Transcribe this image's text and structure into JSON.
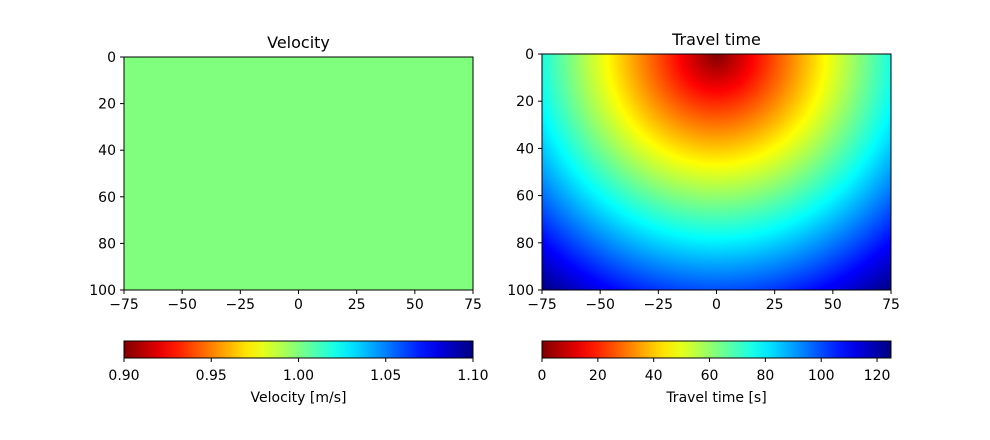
{
  "chart_data": [
    {
      "type": "heatmap",
      "title": "Velocity",
      "x_ticks": [
        -75,
        -50,
        -25,
        0,
        25,
        50,
        75
      ],
      "y_ticks": [
        0,
        20,
        40,
        60,
        80,
        100
      ],
      "xlim": [
        -75,
        75
      ],
      "ylim": [
        100,
        0
      ],
      "y_inverted": true,
      "field": "constant",
      "value": 1.0,
      "colormap": "jet",
      "colorbar": {
        "label": "Velocity [m/s]",
        "range": [
          0.9,
          1.1
        ],
        "ticks": [
          "0.90",
          "0.95",
          "1.00",
          "1.05",
          "1.10"
        ],
        "tick_values": [
          0.9,
          0.95,
          1.0,
          1.05,
          1.1
        ],
        "orientation": "horizontal",
        "placement": "below"
      }
    },
    {
      "type": "heatmap",
      "title": "Travel time",
      "x_ticks": [
        -75,
        -50,
        -25,
        0,
        25,
        50,
        75
      ],
      "y_ticks": [
        0,
        20,
        40,
        60,
        80,
        100
      ],
      "xlim": [
        -75,
        75
      ],
      "ylim": [
        100,
        0
      ],
      "y_inverted": true,
      "field": "distance_from_source",
      "source": {
        "x": 0,
        "y": 0
      },
      "colormap": "jet",
      "colorbar": {
        "label": "Travel time [s]",
        "range": [
          0,
          125
        ],
        "ticks": [
          "0",
          "20",
          "40",
          "60",
          "80",
          "100",
          "120"
        ],
        "tick_values": [
          0,
          20,
          40,
          60,
          80,
          100,
          120
        ],
        "orientation": "horizontal",
        "placement": "below"
      }
    }
  ]
}
